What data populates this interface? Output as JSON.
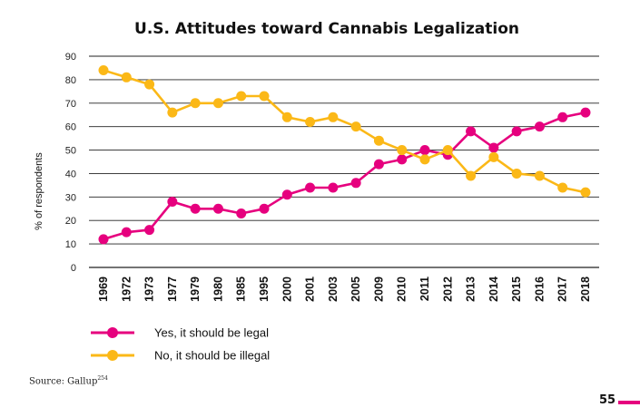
{
  "chart_data": {
    "type": "line",
    "title": "U.S. Attitudes toward Cannabis Legalization",
    "ylabel": "% of respondents",
    "xlabel": "",
    "ylim": [
      0,
      90
    ],
    "yticks": [
      0,
      10,
      20,
      30,
      40,
      50,
      60,
      70,
      80,
      90
    ],
    "grid": "horizontal",
    "legend_placement": "bottom-left",
    "categories": [
      "1969",
      "1972",
      "1973",
      "1977",
      "1979",
      "1980",
      "1985",
      "1995",
      "2000",
      "2001",
      "2003",
      "2005",
      "2009",
      "2010",
      "2011",
      "2012",
      "2013",
      "2014",
      "2015",
      "2016",
      "2017",
      "2018"
    ],
    "series": [
      {
        "name": "Yes, it should be legal",
        "color": "#e6007e",
        "values": [
          12,
          15,
          16,
          28,
          25,
          25,
          23,
          25,
          31,
          34,
          34,
          36,
          44,
          46,
          50,
          48,
          58,
          51,
          58,
          60,
          64,
          66
        ]
      },
      {
        "name": "No, it should be illegal",
        "color": "#fbb817",
        "values": [
          84,
          81,
          78,
          66,
          70,
          70,
          73,
          73,
          64,
          62,
          64,
          60,
          54,
          50,
          46,
          50,
          39,
          47,
          40,
          39,
          34,
          32
        ]
      }
    ]
  },
  "source": {
    "label": "Source: Gallup",
    "ref": "254"
  },
  "page_number": "55",
  "colors": {
    "accent": "#e6007e",
    "secondary": "#fbb817",
    "grid": "#222222"
  }
}
